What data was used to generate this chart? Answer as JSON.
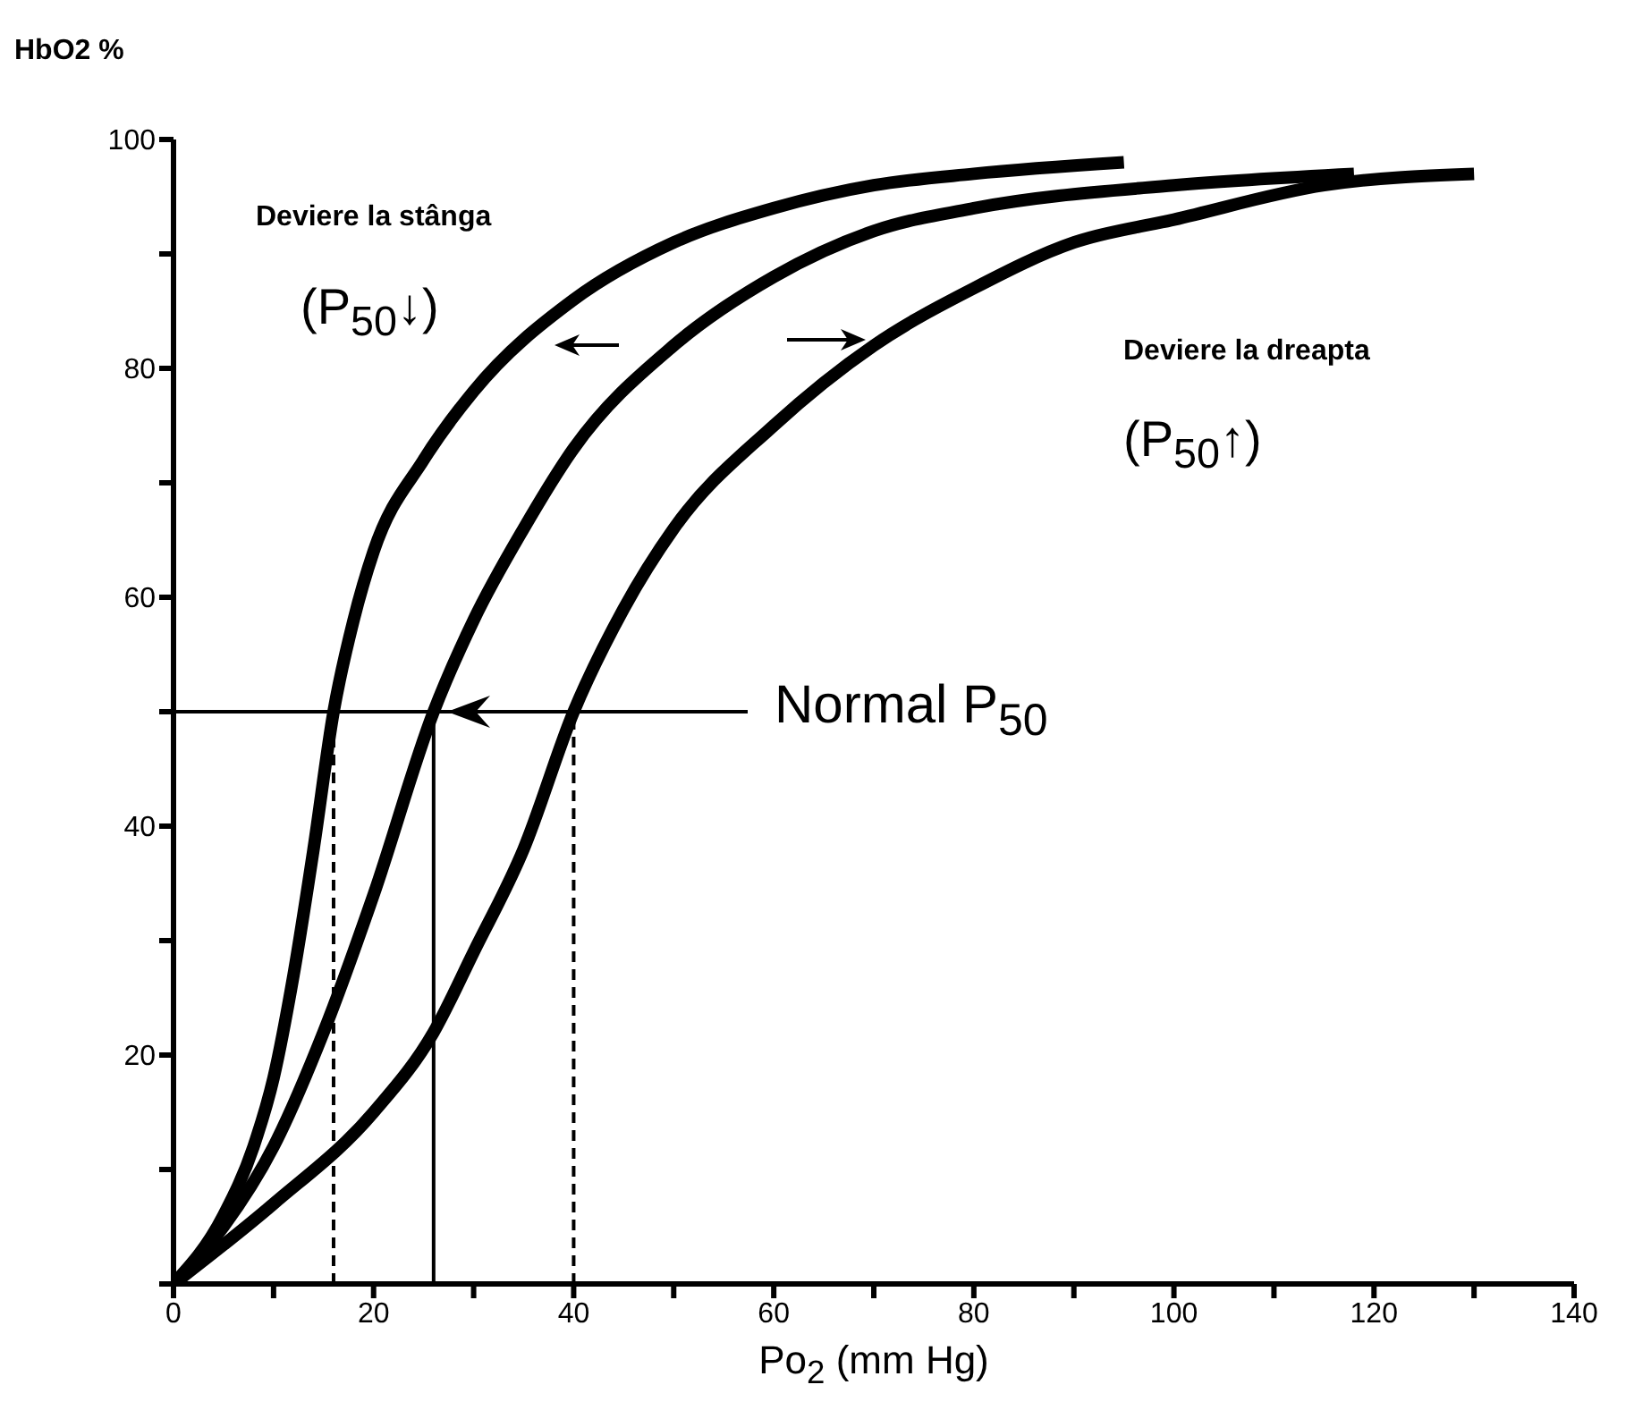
{
  "chart_data": {
    "type": "line",
    "ylabel": "HbO2 %",
    "xlabel": "Po$_{2}$ (mm Hg)",
    "xlim": [
      0,
      140
    ],
    "xticks": [
      0,
      {
        "value": 10,
        "label": null
      },
      20,
      {
        "value": 30,
        "label": null
      },
      40,
      {
        "value": 50,
        "label": null
      },
      60,
      {
        "value": 70,
        "label": null
      },
      80,
      {
        "value": 90,
        "label": null
      },
      100,
      {
        "value": 110,
        "label": null
      },
      120,
      {
        "value": 130,
        "label": null
      },
      140
    ],
    "ylim": [
      0,
      100
    ],
    "yticks": [
      {
        "value": 0,
        "label": null
      },
      {
        "value": 10,
        "label": null
      },
      20,
      {
        "value": 30,
        "label": null
      },
      40,
      {
        "value": 50,
        "label": null
      },
      60,
      {
        "value": 70,
        "label": null
      },
      80,
      {
        "value": 90,
        "label": null
      },
      100
    ],
    "grid": false,
    "legend": false,
    "marker": "none",
    "line_style": "solid",
    "series": [
      {
        "color": "#000000",
        "x": [
          0,
          5,
          8,
          10,
          12,
          14,
          16,
          18,
          20,
          25,
          30,
          40,
          50,
          60,
          70,
          80,
          95
        ],
        "values": [
          0,
          6,
          12,
          18,
          27,
          38,
          50,
          58,
          64,
          72,
          78,
          86,
          91,
          94,
          96,
          97,
          98
        ]
      },
      {
        "color": "#000000",
        "x": [
          0,
          5,
          10,
          15,
          20,
          26,
          30,
          35,
          40,
          50,
          60,
          70,
          80,
          100,
          118
        ],
        "values": [
          0,
          5,
          12,
          22,
          34,
          50,
          58,
          66,
          73,
          82,
          88,
          92,
          94,
          96,
          97
        ]
      },
      {
        "color": "#000000",
        "x": [
          0,
          10,
          20,
          26,
          30,
          35,
          40,
          45,
          50,
          60,
          70,
          80,
          90,
          100,
          115,
          130
        ],
        "values": [
          0,
          7,
          15,
          22,
          29,
          38,
          50,
          59,
          66,
          75,
          82,
          87,
          91,
          93,
          96,
          97
        ]
      }
    ],
    "ref_lines": [
      {
        "axis": "y",
        "value": 50,
        "color": "#000000"
      },
      {
        "axis": "x",
        "value": 16,
        "color": "#000000",
        "line_style": "dashed"
      },
      {
        "axis": "x",
        "value": 26,
        "color": "#000000"
      },
      {
        "axis": "x",
        "value": 40,
        "color": "#000000",
        "line_style": "dashed"
      }
    ],
    "annotations": [
      "Deviere la stânga",
      "(P$_{50}$↓)",
      "Deviere la dreapta",
      "(P$_{50}$↑)",
      "Normal P$_{50}$"
    ]
  }
}
